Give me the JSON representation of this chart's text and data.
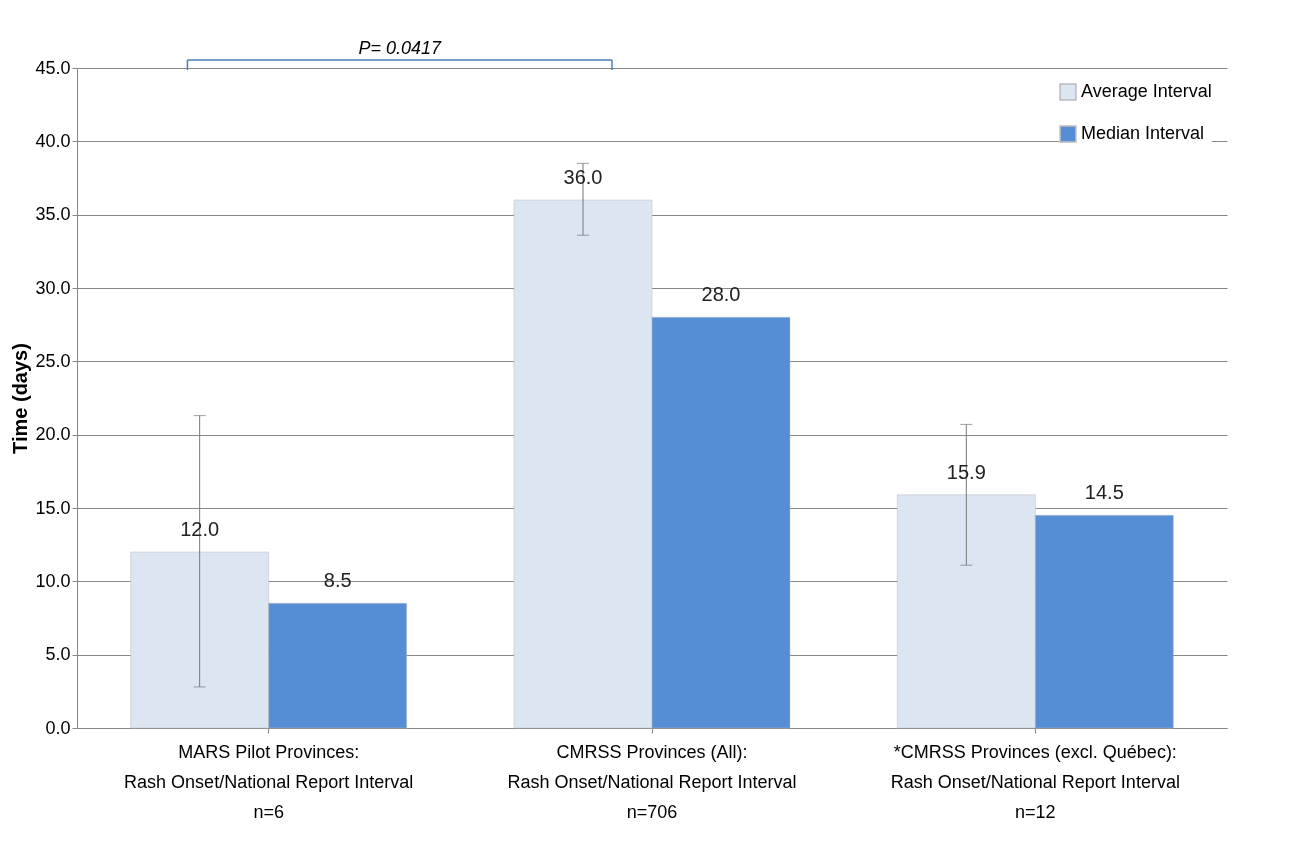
{
  "chart_data": {
    "type": "bar",
    "ylabel": "Time (days)",
    "categories": [
      "MARS Pilot Provinces:\nRash Onset/National Report Interval\nn=6",
      "CMRSS Provinces (All):\nRash Onset/National Report Interval\nn=706",
      "*CMRSS Provinces (excl. Québec):\nRash Onset/National Report Interval\nn=12"
    ],
    "series": [
      {
        "name": "Average Interval",
        "color": "#dce6f2",
        "values": [
          12.0,
          36.0,
          15.9
        ],
        "value_labels": [
          "12.0",
          "36.0",
          "15.9"
        ],
        "errors": [
          [
            2.8,
            21.3
          ],
          [
            33.6,
            38.5
          ],
          [
            11.1,
            20.7
          ]
        ]
      },
      {
        "name": "Median Interval",
        "color": "#558ed5",
        "values": [
          8.5,
          28.0,
          14.5
        ],
        "value_labels": [
          "8.5",
          "28.0",
          "14.5"
        ]
      }
    ],
    "ylim": [
      0,
      45
    ],
    "yticks": [
      {
        "value": 0,
        "label": "0.0"
      },
      {
        "value": 5,
        "label": "5.0"
      },
      {
        "value": 10,
        "label": "10.0"
      },
      {
        "value": 15,
        "label": "15.0"
      },
      {
        "value": 20,
        "label": "20.0"
      },
      {
        "value": 25,
        "label": "25.0"
      },
      {
        "value": 30,
        "label": "30.0"
      },
      {
        "value": 35,
        "label": "35.0"
      },
      {
        "value": 40,
        "label": "40.0"
      },
      {
        "value": 45,
        "label": "45.0"
      }
    ],
    "grid": "y",
    "legend": "top right",
    "annotations": [
      "P= 0.0417"
    ]
  }
}
